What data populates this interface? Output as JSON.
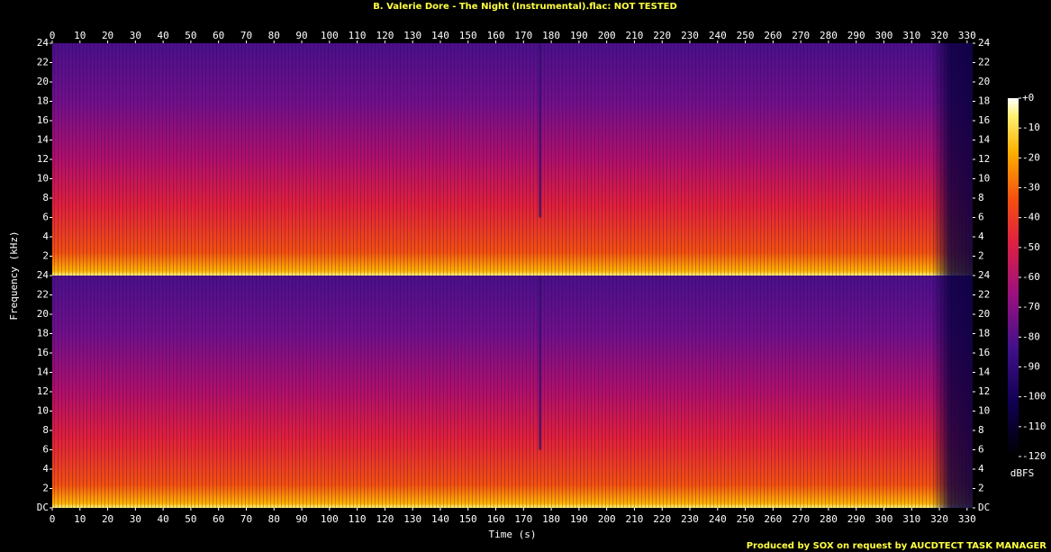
{
  "title": "B. Valerie Dore - The Night (Instrumental).flac: NOT TESTED",
  "footer": "Produced by SOX on request by AUCDTECT TASK MANAGER",
  "ylabel": "Frequency (kHz)",
  "chart_data": [
    {
      "type": "spectrogram",
      "xlim": [
        0,
        332
      ],
      "xticks": [
        0,
        10,
        20,
        30,
        40,
        50,
        60,
        70,
        80,
        90,
        100,
        110,
        120,
        130,
        140,
        150,
        160,
        170,
        180,
        190,
        200,
        210,
        220,
        230,
        240,
        250,
        260,
        270,
        280,
        290,
        300,
        310,
        320,
        330
      ],
      "ylim": [
        0,
        24
      ],
      "yticks": [
        2,
        4,
        6,
        8,
        10,
        12,
        14,
        16,
        18,
        20,
        22,
        24
      ]
    },
    {
      "type": "spectrogram",
      "xlabel": "Time (s)",
      "xlim": [
        0,
        332
      ],
      "xticks": [
        0,
        10,
        20,
        30,
        40,
        50,
        60,
        70,
        80,
        90,
        100,
        110,
        120,
        130,
        140,
        150,
        160,
        170,
        180,
        190,
        200,
        210,
        220,
        230,
        240,
        250,
        260,
        270,
        280,
        290,
        300,
        310,
        320,
        330
      ],
      "ylim": [
        0,
        24
      ],
      "yticks": [
        {
          "value": 0,
          "label": "DC"
        },
        2,
        4,
        6,
        8,
        10,
        12,
        14,
        16,
        18,
        20,
        22,
        24
      ]
    },
    {
      "type": "colorbar",
      "label": "dBFS",
      "zlim": [
        -120,
        0
      ],
      "zticks": [
        {
          "value": 0,
          "label": "+0"
        },
        -10,
        -20,
        -30,
        -40,
        -50,
        -60,
        -70,
        -80,
        -90,
        -100,
        -110,
        -120
      ]
    }
  ]
}
